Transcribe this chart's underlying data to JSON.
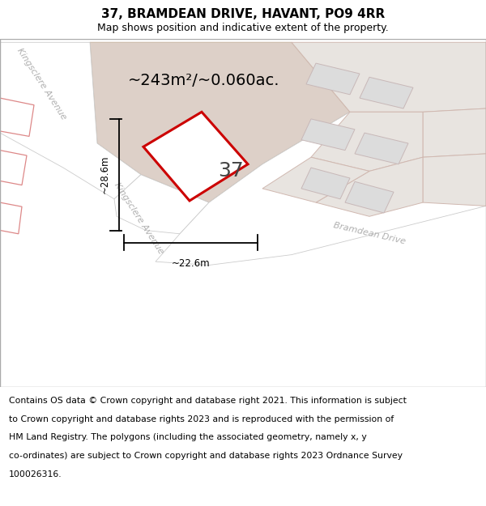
{
  "title": "37, BRAMDEAN DRIVE, HAVANT, PO9 4RR",
  "subtitle": "Map shows position and indicative extent of the property.",
  "area_label": "~243m²/~0.060ac.",
  "number_label": "37",
  "dim_width": "~22.6m",
  "dim_height": "~28.6m",
  "footer_lines": [
    "Contains OS data © Crown copyright and database right 2021. This information is subject",
    "to Crown copyright and database rights 2023 and is reproduced with the permission of",
    "HM Land Registry. The polygons (including the associated geometry, namely x, y",
    "co-ordinates) are subject to Crown copyright and database rights 2023 Ordnance Survey",
    "100026316."
  ],
  "title_fontsize": 11,
  "subtitle_fontsize": 9,
  "area_fontsize": 14,
  "number_fontsize": 18,
  "footer_fontsize": 7.8,
  "dim_fontsize": 8.5,
  "road_label_fontsize": 8,
  "map_bg": "#ffffff",
  "plot_fill": "#ddd0c8",
  "plot_outline_color": "#ccbbaa",
  "highlight_fill": "#ffffff",
  "highlight_outline": "#cc0000",
  "neighbor_fill": "#e8e4e0",
  "neighbor_outline": "#d0b8b0",
  "building_fill": "#dcdcdc",
  "building_outline": "#c8b8b8",
  "road_fill": "#ffffff",
  "road_outline": "#cccccc",
  "road_label_color": "#b0b0b0",
  "left_bldg_outline": "#dd8888",
  "left_bldg_fill": "#ffffff",
  "dim_color": "#000000",
  "text_color": "#000000"
}
